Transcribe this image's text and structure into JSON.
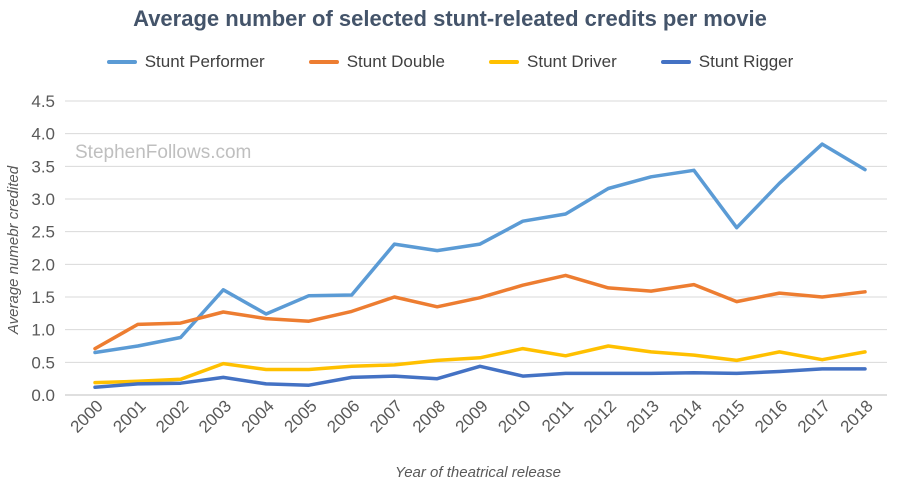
{
  "chart_data": {
    "type": "line",
    "title": "Average number of selected stunt-releated credits per movie",
    "xlabel": "Year of theatrical release",
    "ylabel": "Average numebr credited",
    "watermark": "StephenFollows.com",
    "ylim": [
      0,
      4.5
    ],
    "yticks": [
      "0.0",
      "0.5",
      "1.0",
      "1.5",
      "2.0",
      "2.5",
      "3.0",
      "3.5",
      "4.0",
      "4.5"
    ],
    "categories": [
      "2000",
      "2001",
      "2002",
      "2003",
      "2004",
      "2005",
      "2006",
      "2007",
      "2008",
      "2009",
      "2010",
      "2011",
      "2012",
      "2013",
      "2014",
      "2015",
      "2016",
      "2017",
      "2018"
    ],
    "series": [
      {
        "name": "Stunt Performer",
        "color": "#5b9bd5",
        "values": [
          0.65,
          0.75,
          0.88,
          1.61,
          1.24,
          1.52,
          1.53,
          2.31,
          2.21,
          2.31,
          2.66,
          2.77,
          3.16,
          3.34,
          3.44,
          2.56,
          3.24,
          3.84,
          3.45
        ]
      },
      {
        "name": "Stunt Double",
        "color": "#ed7d31",
        "values": [
          0.71,
          1.08,
          1.1,
          1.27,
          1.17,
          1.13,
          1.28,
          1.5,
          1.35,
          1.49,
          1.68,
          1.83,
          1.64,
          1.59,
          1.69,
          1.43,
          1.56,
          1.5,
          1.58
        ]
      },
      {
        "name": "Stunt Driver",
        "color": "#ffc000",
        "values": [
          0.19,
          0.21,
          0.24,
          0.48,
          0.39,
          0.39,
          0.44,
          0.46,
          0.53,
          0.57,
          0.71,
          0.6,
          0.75,
          0.66,
          0.61,
          0.53,
          0.66,
          0.54,
          0.66
        ]
      },
      {
        "name": "Stunt Rigger",
        "color": "#4472c4",
        "values": [
          0.12,
          0.17,
          0.18,
          0.27,
          0.17,
          0.15,
          0.27,
          0.29,
          0.25,
          0.44,
          0.29,
          0.33,
          0.33,
          0.33,
          0.34,
          0.33,
          0.36,
          0.4,
          0.4
        ]
      }
    ]
  }
}
